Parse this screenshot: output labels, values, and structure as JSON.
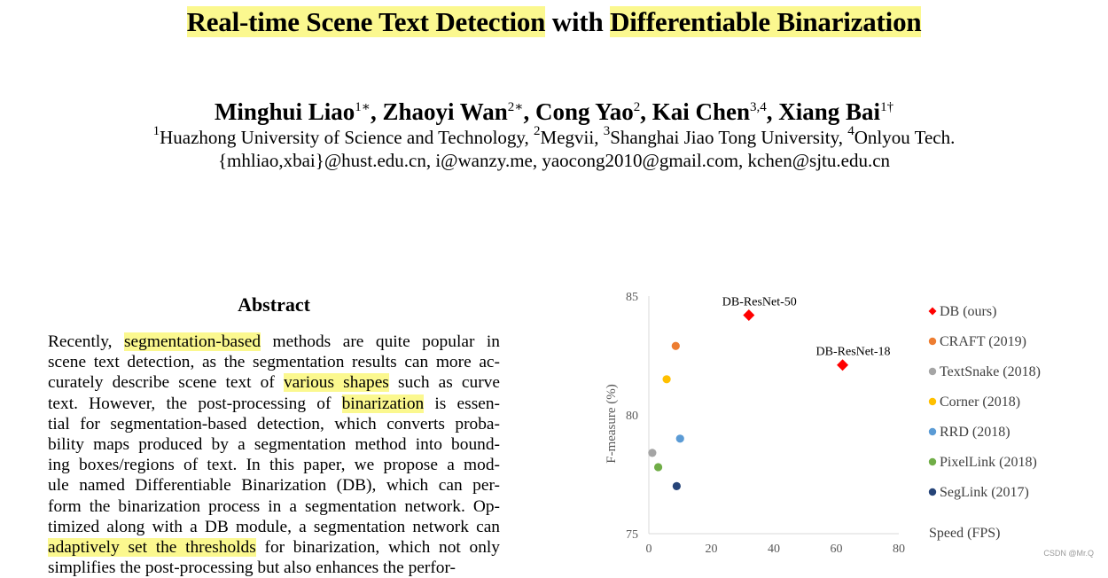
{
  "paper": {
    "title_parts": [
      "Real-time Scene Text Detection",
      " with ",
      "Differentiable Binarization"
    ],
    "authors": [
      {
        "name": "Minghui Liao",
        "sup": "1∗"
      },
      {
        "name": "Zhaoyi Wan",
        "sup": "2∗"
      },
      {
        "name": "Cong Yao",
        "sup": "2"
      },
      {
        "name": "Kai Chen",
        "sup": "3,4"
      },
      {
        "name": "Xiang Bai",
        "sup": "1†"
      }
    ],
    "author_separator": ", ",
    "affiliations": [
      {
        "sup": "1",
        "text": "Huazhong University of Science and Technology, "
      },
      {
        "sup": "2",
        "text": "Megvii, "
      },
      {
        "sup": "3",
        "text": "Shanghai Jiao Tong University, "
      },
      {
        "sup": "4",
        "text": "Onlyou Tech."
      }
    ],
    "emails": "{mhliao,xbai}@hust.edu.cn, i@wanzy.me, yaocong2010@gmail.com, kchen@sjtu.edu.cn",
    "abstract_heading": "Abstract",
    "abstract_lines": [
      [
        [
          "Recently, ",
          false
        ],
        [
          "segmentation-based",
          true
        ],
        [
          " methods are quite popular in",
          false
        ]
      ],
      [
        [
          "scene text detection, as the segmentation results can more ac-",
          false
        ]
      ],
      [
        [
          "curately describe scene text of ",
          false
        ],
        [
          "various shapes",
          true
        ],
        [
          " such as curve",
          false
        ]
      ],
      [
        [
          "text. However, the post-processing of ",
          false
        ],
        [
          "binarization",
          true
        ],
        [
          " is essen-",
          false
        ]
      ],
      [
        [
          "tial for segmentation-based detection, which converts proba-",
          false
        ]
      ],
      [
        [
          "bility maps produced by a segmentation method into bound-",
          false
        ]
      ],
      [
        [
          "ing boxes/regions of text. In this paper, we propose a mod-",
          false
        ]
      ],
      [
        [
          "ule named Differentiable Binarization (DB), which can per-",
          false
        ]
      ],
      [
        [
          "form the binarization process in a segmentation network. Op-",
          false
        ]
      ],
      [
        [
          "timized along with a DB module, a segmentation network can",
          false
        ]
      ],
      [
        [
          "adaptively set the thresholds",
          true
        ],
        [
          " for binarization, which not only",
          false
        ]
      ],
      [
        [
          "simplifies the post-processing but also enhances the perfor-",
          false
        ]
      ]
    ],
    "highlight_color": "#fbf88f"
  },
  "chart_data": {
    "type": "scatter",
    "ylabel": "F-measure (%)",
    "xlabel": "Speed (FPS)",
    "xlim": [
      0,
      80
    ],
    "ylim": [
      75,
      85
    ],
    "xticks": [
      "0",
      "20",
      "40",
      "60",
      "80"
    ],
    "yticks": [
      "75",
      "80",
      "85"
    ],
    "grid": false,
    "legend_position": "right",
    "series": [
      {
        "name": "DB (ours)",
        "color": "#ff0000",
        "marker": "diamond",
        "points": [
          {
            "x": 32,
            "y": 84.2,
            "label": "DB-ResNet-50"
          },
          {
            "x": 62,
            "y": 82.1,
            "label": "DB-ResNet-18"
          }
        ]
      },
      {
        "name": "CRAFT (2019)",
        "color": "#ed7d31",
        "marker": "circle",
        "points": [
          {
            "x": 8.6,
            "y": 82.9
          }
        ]
      },
      {
        "name": "TextSnake (2018)",
        "color": "#a5a5a5",
        "marker": "circle",
        "points": [
          {
            "x": 1.1,
            "y": 78.4
          }
        ]
      },
      {
        "name": "Corner (2018)",
        "color": "#ffc000",
        "marker": "circle",
        "points": [
          {
            "x": 5.7,
            "y": 81.5
          }
        ]
      },
      {
        "name": "RRD (2018)",
        "color": "#5b9bd5",
        "marker": "circle",
        "points": [
          {
            "x": 10,
            "y": 79
          }
        ]
      },
      {
        "name": "PixelLink (2018)",
        "color": "#70ad47",
        "marker": "circle",
        "points": [
          {
            "x": 3,
            "y": 77.8
          }
        ]
      },
      {
        "name": "SegLink (2017)",
        "color": "#264478",
        "marker": "circle",
        "points": [
          {
            "x": 8.9,
            "y": 77
          }
        ]
      }
    ]
  },
  "watermark": "CSDN @Mr.Q"
}
